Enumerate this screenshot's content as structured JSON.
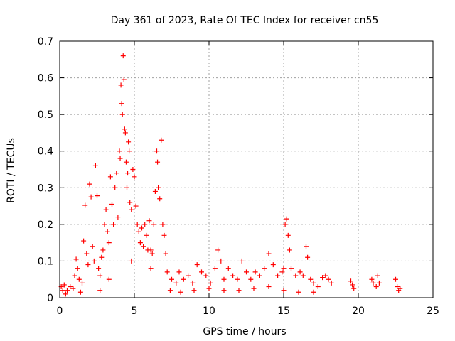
{
  "chart_data": {
    "type": "scatter",
    "title": "Day 361 of 2023, Rate Of TEC Index for receiver cn55",
    "xlabel": "GPS time / hours",
    "ylabel": "ROTI / TECUs",
    "xlim": [
      0,
      25
    ],
    "ylim": [
      0,
      0.7
    ],
    "xticks": [
      0,
      5,
      10,
      15,
      20,
      25
    ],
    "yticks": [
      0,
      0.1,
      0.2,
      0.3,
      0.4,
      0.5,
      0.6,
      0.7
    ],
    "xtick_labels": [
      "0",
      "5",
      "10",
      "15",
      "20",
      "25"
    ],
    "ytick_labels": [
      "0",
      "0.1",
      "0.2",
      "0.3",
      "0.4",
      "0.5",
      "0.6",
      "0.7"
    ],
    "grid": true,
    "marker": "+",
    "color": "#ff0000",
    "series": [
      {
        "name": "ROTI",
        "points": [
          [
            0.1,
            0.03
          ],
          [
            0.2,
            0.02
          ],
          [
            0.3,
            0.035
          ],
          [
            0.5,
            0.02
          ],
          [
            0.7,
            0.03
          ],
          [
            0.9,
            0.025
          ],
          [
            1.0,
            0.06
          ],
          [
            1.1,
            0.105
          ],
          [
            1.2,
            0.08
          ],
          [
            1.3,
            0.05
          ],
          [
            1.5,
            0.04
          ],
          [
            1.6,
            0.155
          ],
          [
            1.7,
            0.252
          ],
          [
            1.8,
            0.12
          ],
          [
            1.9,
            0.09
          ],
          [
            2.0,
            0.31
          ],
          [
            2.1,
            0.275
          ],
          [
            2.2,
            0.14
          ],
          [
            2.3,
            0.1
          ],
          [
            2.4,
            0.36
          ],
          [
            2.5,
            0.278
          ],
          [
            2.6,
            0.08
          ],
          [
            2.7,
            0.06
          ],
          [
            2.8,
            0.11
          ],
          [
            2.9,
            0.13
          ],
          [
            3.0,
            0.2
          ],
          [
            3.1,
            0.24
          ],
          [
            3.2,
            0.18
          ],
          [
            3.3,
            0.15
          ],
          [
            3.4,
            0.33
          ],
          [
            3.5,
            0.255
          ],
          [
            3.6,
            0.2
          ],
          [
            3.7,
            0.3
          ],
          [
            3.8,
            0.34
          ],
          [
            3.9,
            0.22
          ],
          [
            4.0,
            0.4
          ],
          [
            4.05,
            0.38
          ],
          [
            4.1,
            0.58
          ],
          [
            4.15,
            0.53
          ],
          [
            4.2,
            0.5
          ],
          [
            4.25,
            0.66
          ],
          [
            4.3,
            0.595
          ],
          [
            4.35,
            0.46
          ],
          [
            4.4,
            0.45
          ],
          [
            4.45,
            0.37
          ],
          [
            4.5,
            0.3
          ],
          [
            4.55,
            0.34
          ],
          [
            4.6,
            0.425
          ],
          [
            4.65,
            0.4
          ],
          [
            4.7,
            0.26
          ],
          [
            4.8,
            0.24
          ],
          [
            4.9,
            0.35
          ],
          [
            5.0,
            0.33
          ],
          [
            5.1,
            0.25
          ],
          [
            5.2,
            0.2
          ],
          [
            5.3,
            0.18
          ],
          [
            5.4,
            0.15
          ],
          [
            5.5,
            0.19
          ],
          [
            5.6,
            0.14
          ],
          [
            5.7,
            0.2
          ],
          [
            5.8,
            0.17
          ],
          [
            5.9,
            0.13
          ],
          [
            6.0,
            0.21
          ],
          [
            6.1,
            0.13
          ],
          [
            6.2,
            0.12
          ],
          [
            6.3,
            0.2
          ],
          [
            6.4,
            0.29
          ],
          [
            6.5,
            0.4
          ],
          [
            6.55,
            0.37
          ],
          [
            6.6,
            0.3
          ],
          [
            6.7,
            0.27
          ],
          [
            6.8,
            0.43
          ],
          [
            6.9,
            0.2
          ],
          [
            7.0,
            0.17
          ],
          [
            7.1,
            0.12
          ],
          [
            7.2,
            0.07
          ],
          [
            7.5,
            0.05
          ],
          [
            7.8,
            0.04
          ],
          [
            8.0,
            0.07
          ],
          [
            8.3,
            0.05
          ],
          [
            8.6,
            0.06
          ],
          [
            8.9,
            0.04
          ],
          [
            9.2,
            0.09
          ],
          [
            9.5,
            0.07
          ],
          [
            9.8,
            0.06
          ],
          [
            10.1,
            0.04
          ],
          [
            10.4,
            0.08
          ],
          [
            10.6,
            0.13
          ],
          [
            10.8,
            0.1
          ],
          [
            11.0,
            0.05
          ],
          [
            11.3,
            0.08
          ],
          [
            11.6,
            0.06
          ],
          [
            11.9,
            0.05
          ],
          [
            12.2,
            0.1
          ],
          [
            12.5,
            0.07
          ],
          [
            12.8,
            0.05
          ],
          [
            13.1,
            0.07
          ],
          [
            13.4,
            0.06
          ],
          [
            13.7,
            0.08
          ],
          [
            14.0,
            0.12
          ],
          [
            14.3,
            0.09
          ],
          [
            14.6,
            0.06
          ],
          [
            14.9,
            0.07
          ],
          [
            15.0,
            0.08
          ],
          [
            15.1,
            0.2
          ],
          [
            15.2,
            0.215
          ],
          [
            15.3,
            0.17
          ],
          [
            15.4,
            0.13
          ],
          [
            15.5,
            0.08
          ],
          [
            15.8,
            0.06
          ],
          [
            16.1,
            0.07
          ],
          [
            16.3,
            0.06
          ],
          [
            16.5,
            0.14
          ],
          [
            16.6,
            0.11
          ],
          [
            16.8,
            0.05
          ],
          [
            17.0,
            0.04
          ],
          [
            17.3,
            0.03
          ],
          [
            17.6,
            0.055
          ],
          [
            17.8,
            0.06
          ],
          [
            18.0,
            0.05
          ],
          [
            18.2,
            0.04
          ],
          [
            19.5,
            0.045
          ],
          [
            19.6,
            0.035
          ],
          [
            19.7,
            0.025
          ],
          [
            20.9,
            0.05
          ],
          [
            21.0,
            0.04
          ],
          [
            21.2,
            0.03
          ],
          [
            21.3,
            0.06
          ],
          [
            21.4,
            0.04
          ],
          [
            22.5,
            0.05
          ],
          [
            22.6,
            0.03
          ],
          [
            22.7,
            0.02
          ],
          [
            22.8,
            0.025
          ],
          [
            0.4,
            0.01
          ],
          [
            1.4,
            0.015
          ],
          [
            2.7,
            0.02
          ],
          [
            3.3,
            0.05
          ],
          [
            4.8,
            0.1
          ],
          [
            6.1,
            0.08
          ],
          [
            7.4,
            0.02
          ],
          [
            8.1,
            0.015
          ],
          [
            9.0,
            0.02
          ],
          [
            10.0,
            0.025
          ],
          [
            11.0,
            0.02
          ],
          [
            12.0,
            0.02
          ],
          [
            13.0,
            0.025
          ],
          [
            14.0,
            0.03
          ],
          [
            15.0,
            0.02
          ],
          [
            16.0,
            0.015
          ],
          [
            17.0,
            0.015
          ]
        ]
      }
    ]
  }
}
